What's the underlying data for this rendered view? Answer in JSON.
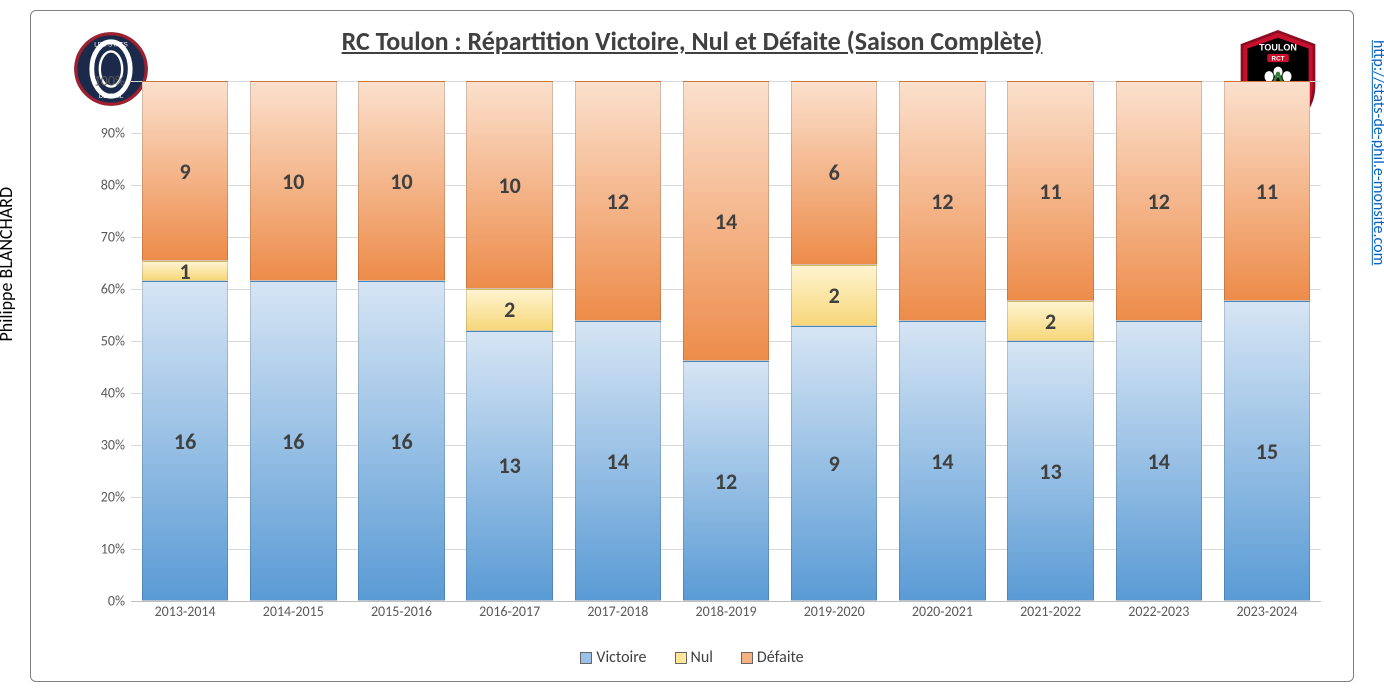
{
  "chart": {
    "type": "stacked-bar-100pct",
    "title": "RC Toulon : Répartition Victoire, Nul et Défaite (Saison Complète)",
    "title_fontsize": 26,
    "background_color": "#ffffff",
    "border_color": "#808080",
    "grid_color": "#d9d9d9",
    "axis_text_color": "#595959",
    "datalabel_fontsize": 22,
    "datalabel_color": "#404040",
    "ylim": [
      0,
      100
    ],
    "ytick_step": 10,
    "y_axis_format": "percent",
    "categories": [
      "2013-2014",
      "2014-2015",
      "2015-2016",
      "2016-2017",
      "2017-2018",
      "2018-2019",
      "2019-2020",
      "2020-2021",
      "2021-2022",
      "2022-2023",
      "2023-2024"
    ],
    "series": [
      {
        "name": "Victoire",
        "gradient_top": "#d6e5f4",
        "gradient_bottom": "#5a9bd5",
        "swatch": "#9bc2e6",
        "values": [
          16,
          16,
          16,
          13,
          14,
          12,
          9,
          14,
          13,
          14,
          15
        ]
      },
      {
        "name": "Nul",
        "gradient_top": "#fff4d0",
        "gradient_bottom": "#f6d77a",
        "swatch": "#ffe699",
        "values": [
          1,
          0,
          0,
          2,
          0,
          0,
          2,
          0,
          2,
          0,
          0
        ]
      },
      {
        "name": "Défaite",
        "gradient_top": "#fbe0cd",
        "gradient_bottom": "#ed8c4a",
        "swatch": "#f4b183",
        "values": [
          9,
          10,
          10,
          10,
          12,
          14,
          6,
          12,
          11,
          12,
          11
        ]
      }
    ],
    "legend_labels": {
      "victoire": "Victoire",
      "nul": "Nul",
      "defaite": "Défaite"
    },
    "bar_width_ratio": 0.8
  },
  "author": "Philippe BLANCHARD",
  "url": "http://stats-de-phil.e-monsite.com",
  "logos": {
    "left": "stats-de-phil-logo",
    "right": "rc-toulon-logo"
  }
}
